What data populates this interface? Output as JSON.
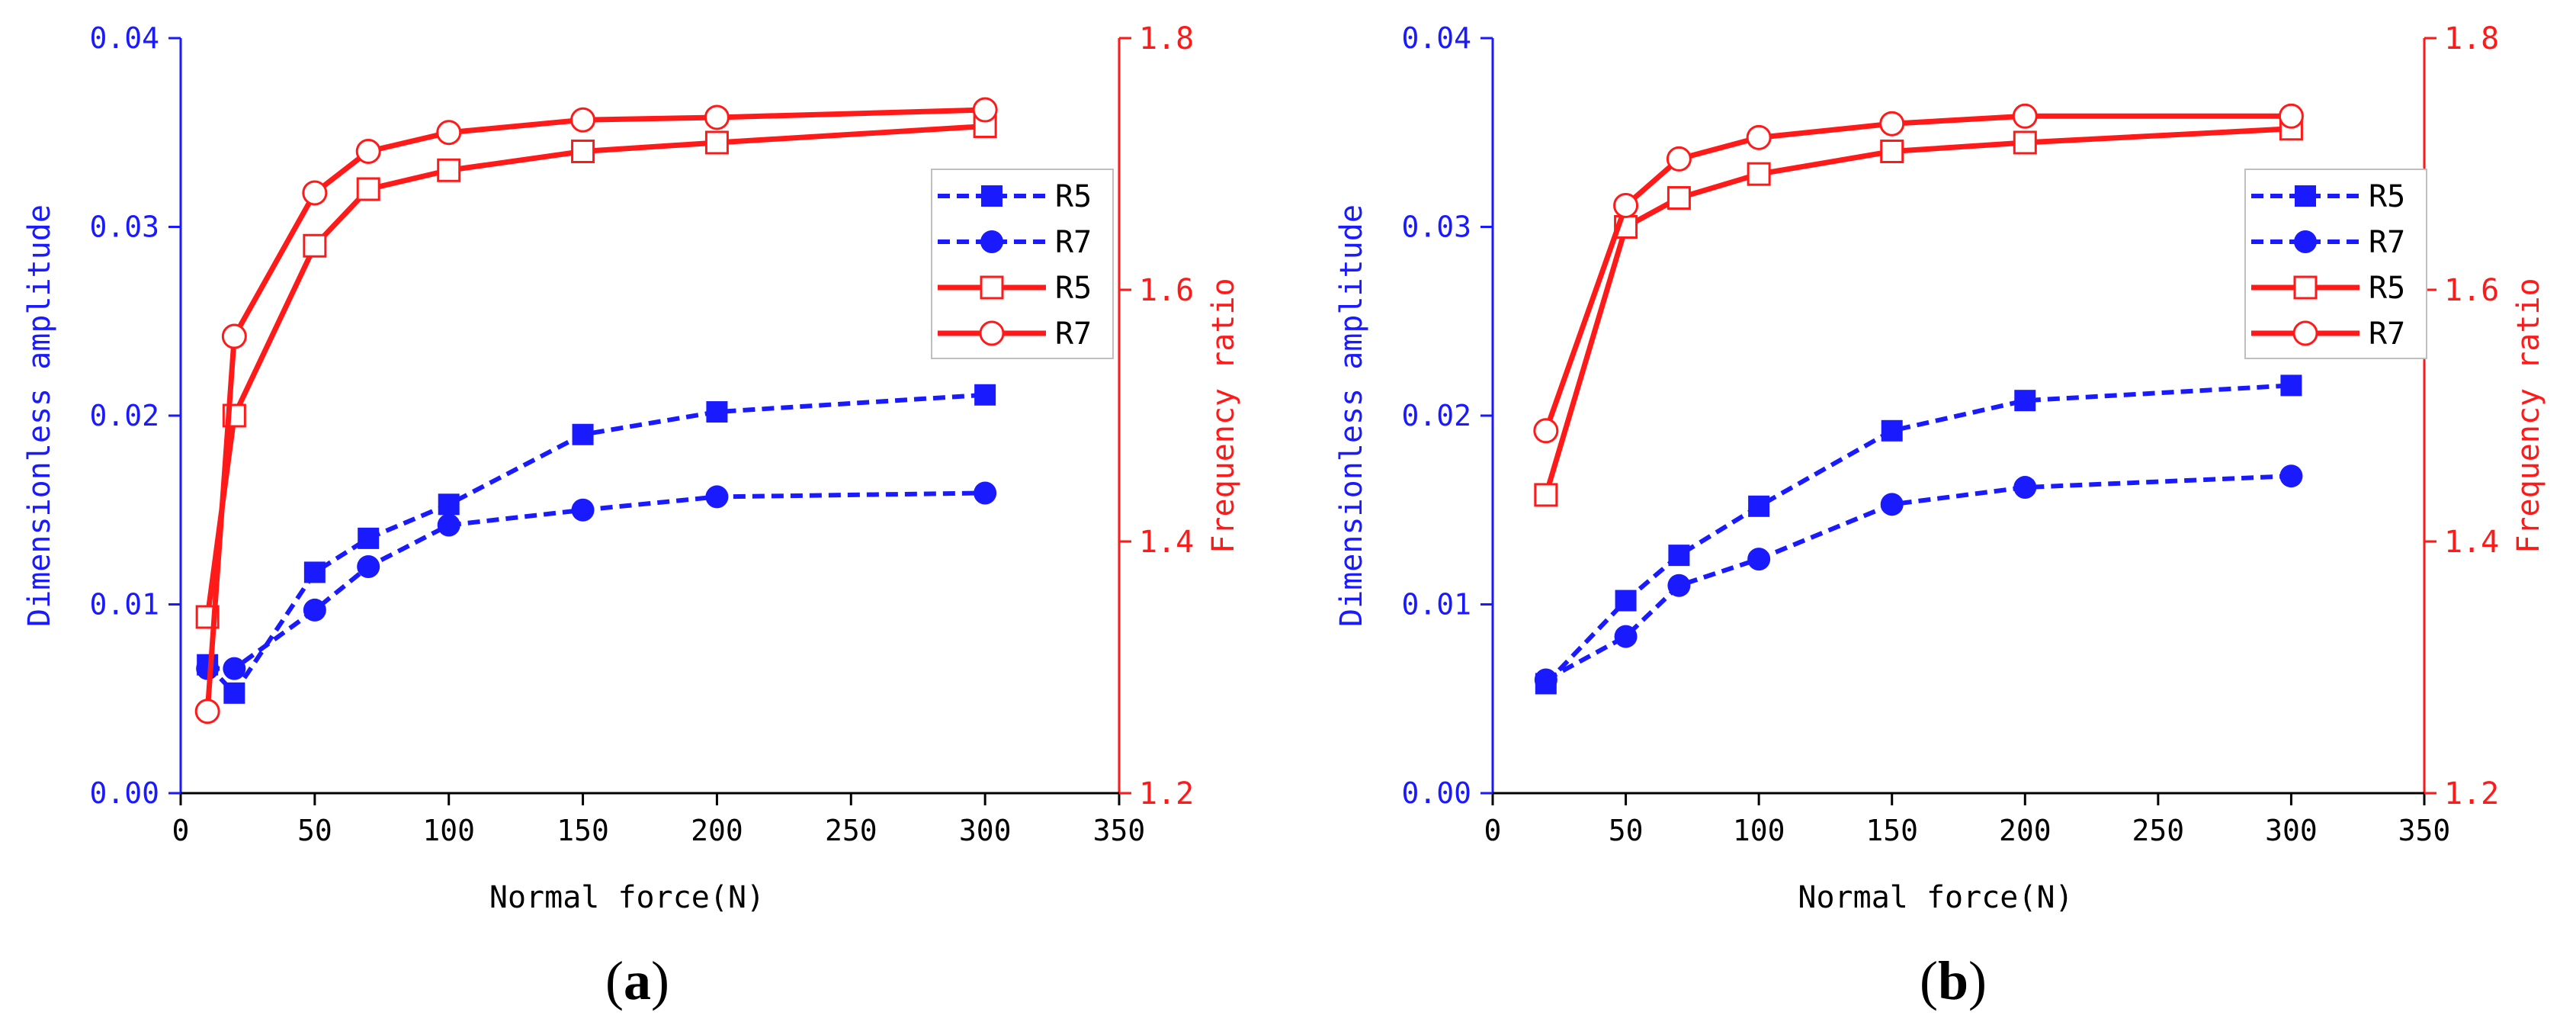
{
  "colors": {
    "blue": "#1a1aff",
    "red": "#ff1a1a",
    "axis": "#000000"
  },
  "chart_data": [
    {
      "panel": "(a)",
      "type": "line",
      "xlabel": "Normal force(N)",
      "ylabel_left": "Dimensionless amplitude",
      "ylabel_right": "Frequency ratio",
      "xlim": [
        0,
        350
      ],
      "xticks": [
        "0",
        "50",
        "100",
        "150",
        "200",
        "250",
        "300",
        "350"
      ],
      "ylim_left": [
        0,
        0.04
      ],
      "yticks_left": [
        "0.00",
        "0.01",
        "0.02",
        "0.03",
        "0.04"
      ],
      "ylim_right": [
        1.2,
        1.8
      ],
      "yticks_right": [
        "1.2",
        "1.4",
        "1.6",
        "1.8"
      ],
      "legend": [
        "R5",
        "R7",
        "R5",
        "R7"
      ],
      "series": [
        {
          "name": "R5",
          "axis": "left",
          "color": "blue",
          "marker": "square-filled",
          "dash": true,
          "x": [
            10,
            20,
            50,
            70,
            100,
            150,
            200,
            300
          ],
          "y": [
            0.0068,
            0.0053,
            0.0117,
            0.0135,
            0.0153,
            0.019,
            0.0202,
            0.0211
          ]
        },
        {
          "name": "R7",
          "axis": "left",
          "color": "blue",
          "marker": "circle-filled",
          "dash": true,
          "x": [
            10,
            20,
            50,
            70,
            100,
            150,
            200,
            300
          ],
          "y": [
            0.0066,
            0.0066,
            0.0097,
            0.012,
            0.0142,
            0.015,
            0.0157,
            0.0159
          ]
        },
        {
          "name": "R5",
          "axis": "right",
          "color": "red",
          "marker": "square-open",
          "dash": false,
          "x": [
            10,
            20,
            50,
            70,
            100,
            150,
            200,
            300
          ],
          "y": [
            1.34,
            1.5,
            1.635,
            1.68,
            1.695,
            1.71,
            1.717,
            1.73
          ]
        },
        {
          "name": "R7",
          "axis": "right",
          "color": "red",
          "marker": "circle-open",
          "dash": false,
          "x": [
            10,
            20,
            50,
            70,
            100,
            150,
            200,
            300
          ],
          "y": [
            1.265,
            1.563,
            1.677,
            1.71,
            1.725,
            1.735,
            1.737,
            1.743
          ]
        }
      ]
    },
    {
      "panel": "(b)",
      "type": "line",
      "xlabel": "Normal force(N)",
      "ylabel_left": "Dimensionless amplitude",
      "ylabel_right": "Frequency ratio",
      "xlim": [
        0,
        350
      ],
      "xticks": [
        "0",
        "50",
        "100",
        "150",
        "200",
        "250",
        "300",
        "350"
      ],
      "ylim_left": [
        0,
        0.04
      ],
      "yticks_left": [
        "0.00",
        "0.01",
        "0.02",
        "0.03",
        "0.04"
      ],
      "ylim_right": [
        1.2,
        1.8
      ],
      "yticks_right": [
        "1.2",
        "1.4",
        "1.6",
        "1.8"
      ],
      "legend": [
        "R5",
        "R7",
        "R5",
        "R7"
      ],
      "series": [
        {
          "name": "R5",
          "axis": "left",
          "color": "blue",
          "marker": "square-filled",
          "dash": true,
          "x": [
            20,
            50,
            70,
            100,
            150,
            200,
            300
          ],
          "y": [
            0.0058,
            0.0102,
            0.0126,
            0.0152,
            0.0192,
            0.0208,
            0.0216
          ]
        },
        {
          "name": "R7",
          "axis": "left",
          "color": "blue",
          "marker": "circle-filled",
          "dash": true,
          "x": [
            20,
            50,
            70,
            100,
            150,
            200,
            300
          ],
          "y": [
            0.006,
            0.0083,
            0.011,
            0.0124,
            0.0153,
            0.0162,
            0.0168
          ]
        },
        {
          "name": "R5",
          "axis": "right",
          "color": "red",
          "marker": "square-open",
          "dash": false,
          "x": [
            20,
            50,
            70,
            100,
            150,
            200,
            300
          ],
          "y": [
            1.437,
            1.65,
            1.673,
            1.692,
            1.71,
            1.717,
            1.728
          ]
        },
        {
          "name": "R7",
          "axis": "right",
          "color": "red",
          "marker": "circle-open",
          "dash": false,
          "x": [
            20,
            50,
            70,
            100,
            150,
            200,
            300
          ],
          "y": [
            1.488,
            1.667,
            1.704,
            1.721,
            1.732,
            1.738,
            1.738
          ]
        }
      ]
    }
  ]
}
